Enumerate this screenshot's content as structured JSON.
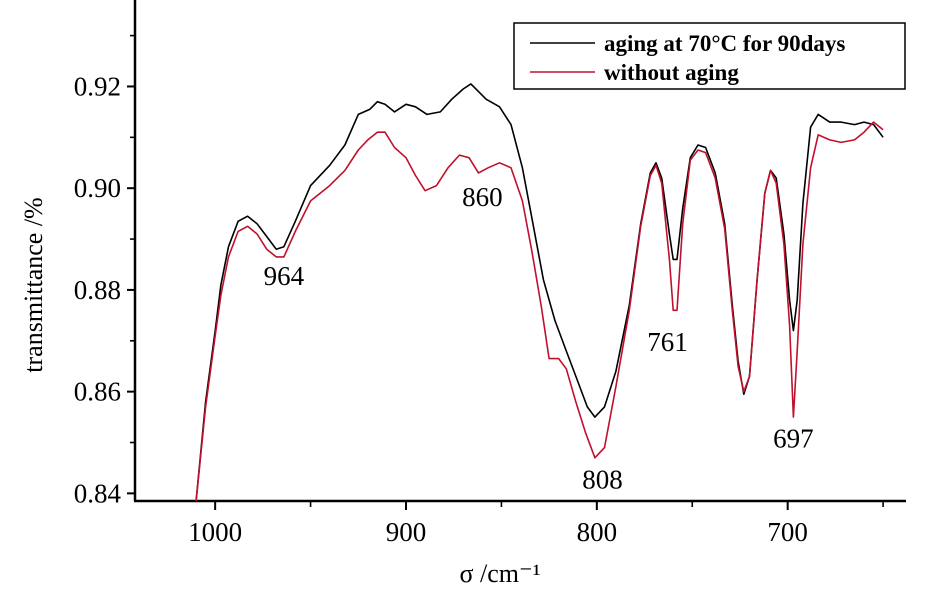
{
  "chart_data": {
    "type": "line",
    "xlabel": "σ /cm⁻¹",
    "ylabel": "transmittance /%",
    "x_reversed": true,
    "xlim": [
      1042,
      638
    ],
    "ylim": [
      0.8385,
      0.937
    ],
    "x_ticks": [
      1000,
      900,
      800,
      700
    ],
    "x_tick_labels": [
      "1000",
      "900",
      "800",
      "700"
    ],
    "y_ticks": [
      0.84,
      0.86,
      0.88,
      0.9,
      0.92
    ],
    "y_tick_labels": [
      "0.84",
      "0.86",
      "0.88",
      "0.90",
      "0.92"
    ],
    "grid": false,
    "legend_position": "top-right",
    "series": [
      {
        "name": "aging at 70°C for 90days",
        "color": "#000000",
        "points": [
          [
            1010,
            0.8385
          ],
          [
            1005,
            0.858
          ],
          [
            1000,
            0.872
          ],
          [
            997,
            0.881
          ],
          [
            993,
            0.8885
          ],
          [
            988,
            0.8935
          ],
          [
            983,
            0.8945
          ],
          [
            978,
            0.893
          ],
          [
            973,
            0.8905
          ],
          [
            968,
            0.888
          ],
          [
            964,
            0.8885
          ],
          [
            958,
            0.8935
          ],
          [
            950,
            0.9005
          ],
          [
            940,
            0.9045
          ],
          [
            932,
            0.9085
          ],
          [
            925,
            0.9145
          ],
          [
            919,
            0.9155
          ],
          [
            915,
            0.917
          ],
          [
            911,
            0.9165
          ],
          [
            906,
            0.915
          ],
          [
            900,
            0.9165
          ],
          [
            895,
            0.916
          ],
          [
            889,
            0.9145
          ],
          [
            882,
            0.915
          ],
          [
            876,
            0.9175
          ],
          [
            870,
            0.9195
          ],
          [
            866,
            0.9205
          ],
          [
            862,
            0.919
          ],
          [
            858,
            0.9175
          ],
          [
            851,
            0.916
          ],
          [
            845,
            0.9125
          ],
          [
            839,
            0.904
          ],
          [
            834,
            0.894
          ],
          [
            828,
            0.882
          ],
          [
            822,
            0.874
          ],
          [
            816,
            0.868
          ],
          [
            810,
            0.862
          ],
          [
            805,
            0.857
          ],
          [
            801,
            0.855
          ],
          [
            796,
            0.857
          ],
          [
            790,
            0.864
          ],
          [
            783,
            0.877
          ],
          [
            777,
            0.893
          ],
          [
            772,
            0.903
          ],
          [
            769,
            0.905
          ],
          [
            766,
            0.902
          ],
          [
            762,
            0.891
          ],
          [
            760,
            0.886
          ],
          [
            758,
            0.886
          ],
          [
            755,
            0.896
          ],
          [
            751,
            0.906
          ],
          [
            747,
            0.9085
          ],
          [
            743,
            0.908
          ],
          [
            738,
            0.903
          ],
          [
            733,
            0.893
          ],
          [
            729,
            0.877
          ],
          [
            726,
            0.866
          ],
          [
            723,
            0.8595
          ],
          [
            720,
            0.863
          ],
          [
            716,
            0.882
          ],
          [
            712,
            0.899
          ],
          [
            709,
            0.9035
          ],
          [
            706,
            0.902
          ],
          [
            702,
            0.891
          ],
          [
            699,
            0.878
          ],
          [
            697,
            0.872
          ],
          [
            695,
            0.878
          ],
          [
            692,
            0.897
          ],
          [
            688,
            0.912
          ],
          [
            684,
            0.9145
          ],
          [
            678,
            0.913
          ],
          [
            672,
            0.913
          ],
          [
            665,
            0.9125
          ],
          [
            660,
            0.913
          ],
          [
            655,
            0.9125
          ],
          [
            650,
            0.91
          ]
        ]
      },
      {
        "name": "without aging",
        "color": "#c0102c",
        "points": [
          [
            1010,
            0.8385
          ],
          [
            1005,
            0.857
          ],
          [
            1000,
            0.871
          ],
          [
            997,
            0.879
          ],
          [
            993,
            0.8865
          ],
          [
            988,
            0.8915
          ],
          [
            983,
            0.8925
          ],
          [
            978,
            0.891
          ],
          [
            973,
            0.888
          ],
          [
            968,
            0.8865
          ],
          [
            964,
            0.8865
          ],
          [
            958,
            0.8915
          ],
          [
            950,
            0.8975
          ],
          [
            940,
            0.9005
          ],
          [
            932,
            0.9035
          ],
          [
            925,
            0.9075
          ],
          [
            920,
            0.9095
          ],
          [
            915,
            0.911
          ],
          [
            911,
            0.911
          ],
          [
            906,
            0.908
          ],
          [
            900,
            0.906
          ],
          [
            895,
            0.9025
          ],
          [
            890,
            0.8995
          ],
          [
            884,
            0.9005
          ],
          [
            878,
            0.904
          ],
          [
            872,
            0.9065
          ],
          [
            867,
            0.906
          ],
          [
            862,
            0.903
          ],
          [
            857,
            0.904
          ],
          [
            851,
            0.905
          ],
          [
            845,
            0.904
          ],
          [
            839,
            0.8975
          ],
          [
            834,
            0.8875
          ],
          [
            829,
            0.8765
          ],
          [
            825,
            0.8665
          ],
          [
            820,
            0.8665
          ],
          [
            816,
            0.8645
          ],
          [
            811,
            0.858
          ],
          [
            806,
            0.852
          ],
          [
            801,
            0.847
          ],
          [
            796,
            0.849
          ],
          [
            790,
            0.861
          ],
          [
            783,
            0.876
          ],
          [
            777,
            0.8925
          ],
          [
            772,
            0.9025
          ],
          [
            769,
            0.9045
          ],
          [
            766,
            0.901
          ],
          [
            762,
            0.886
          ],
          [
            760,
            0.876
          ],
          [
            758,
            0.876
          ],
          [
            755,
            0.893
          ],
          [
            751,
            0.9055
          ],
          [
            747,
            0.9075
          ],
          [
            743,
            0.907
          ],
          [
            738,
            0.902
          ],
          [
            733,
            0.892
          ],
          [
            729,
            0.876
          ],
          [
            726,
            0.865
          ],
          [
            723,
            0.86
          ],
          [
            720,
            0.863
          ],
          [
            716,
            0.882
          ],
          [
            712,
            0.899
          ],
          [
            709,
            0.9035
          ],
          [
            706,
            0.901
          ],
          [
            702,
            0.889
          ],
          [
            699,
            0.873
          ],
          [
            697,
            0.855
          ],
          [
            695,
            0.868
          ],
          [
            692,
            0.889
          ],
          [
            688,
            0.904
          ],
          [
            684,
            0.9105
          ],
          [
            678,
            0.9095
          ],
          [
            672,
            0.909
          ],
          [
            665,
            0.9095
          ],
          [
            660,
            0.911
          ],
          [
            655,
            0.913
          ],
          [
            650,
            0.9115
          ]
        ]
      }
    ],
    "annotations": [
      {
        "text": "964",
        "x": 964,
        "y": 0.881
      },
      {
        "text": "860",
        "x": 860,
        "y": 0.8965
      },
      {
        "text": "808",
        "x": 797,
        "y": 0.841
      },
      {
        "text": "761",
        "x": 763,
        "y": 0.868
      },
      {
        "text": "697",
        "x": 697,
        "y": 0.849
      }
    ]
  }
}
